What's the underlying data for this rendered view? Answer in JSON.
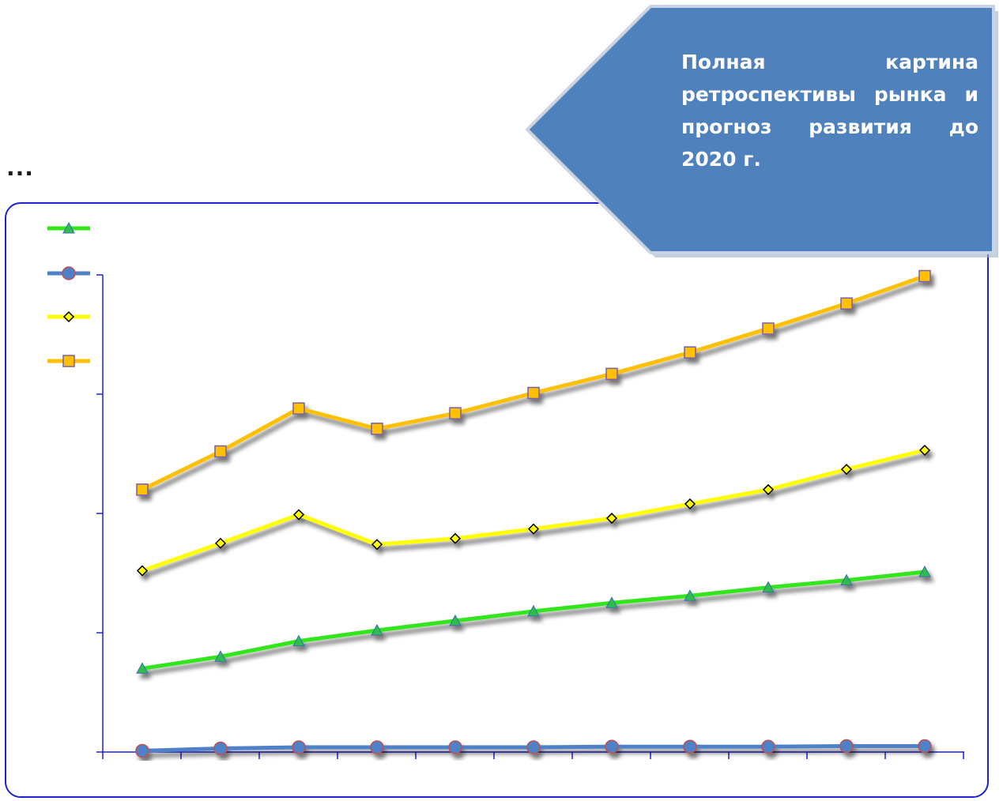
{
  "header": {
    "ellipsis": "...",
    "callout_text": "Полная картина ретроспективы рынка и прогноз развития до 2020 г."
  },
  "colors": {
    "frame": "#1f1fd6",
    "axis": "#1f1fd6",
    "callout_fill": "#4f81bd",
    "callout_border": "#c9d3e3"
  },
  "chart_data": {
    "type": "line",
    "title": "",
    "xlabel": "",
    "ylabel": "",
    "categories": [
      "",
      "",
      "",
      "",
      "",
      "",
      "",
      "",
      "",
      "",
      ""
    ],
    "ylim": [
      0,
      4
    ],
    "grid": false,
    "legend": "top-left",
    "series": [
      {
        "color": "#33e61a",
        "marker": "triangle",
        "marker_fill": "#2ebd4e",
        "marker_stroke": "#3a6bb3",
        "values": [
          0.7,
          0.8,
          0.93,
          1.02,
          1.1,
          1.18,
          1.25,
          1.31,
          1.38,
          1.44,
          1.51
        ]
      },
      {
        "color": "#4f81c9",
        "marker": "circle",
        "marker_fill": "#4f81c9",
        "marker_stroke": "#c0504d",
        "values": [
          0.01,
          0.03,
          0.04,
          0.04,
          0.04,
          0.04,
          0.045,
          0.045,
          0.045,
          0.05,
          0.05
        ]
      },
      {
        "color": "#ffff00",
        "marker": "diamond",
        "marker_fill": "#ffff00",
        "marker_stroke": "#000000",
        "values": [
          1.52,
          1.75,
          1.99,
          1.74,
          1.79,
          1.87,
          1.96,
          2.08,
          2.2,
          2.37,
          2.53
        ]
      },
      {
        "color": "#ffc000",
        "marker": "square",
        "marker_fill": "#ffc000",
        "marker_stroke": "#7a5ea8",
        "values": [
          2.2,
          2.52,
          2.88,
          2.71,
          2.84,
          3.01,
          3.17,
          3.35,
          3.55,
          3.76,
          3.99
        ]
      }
    ]
  }
}
